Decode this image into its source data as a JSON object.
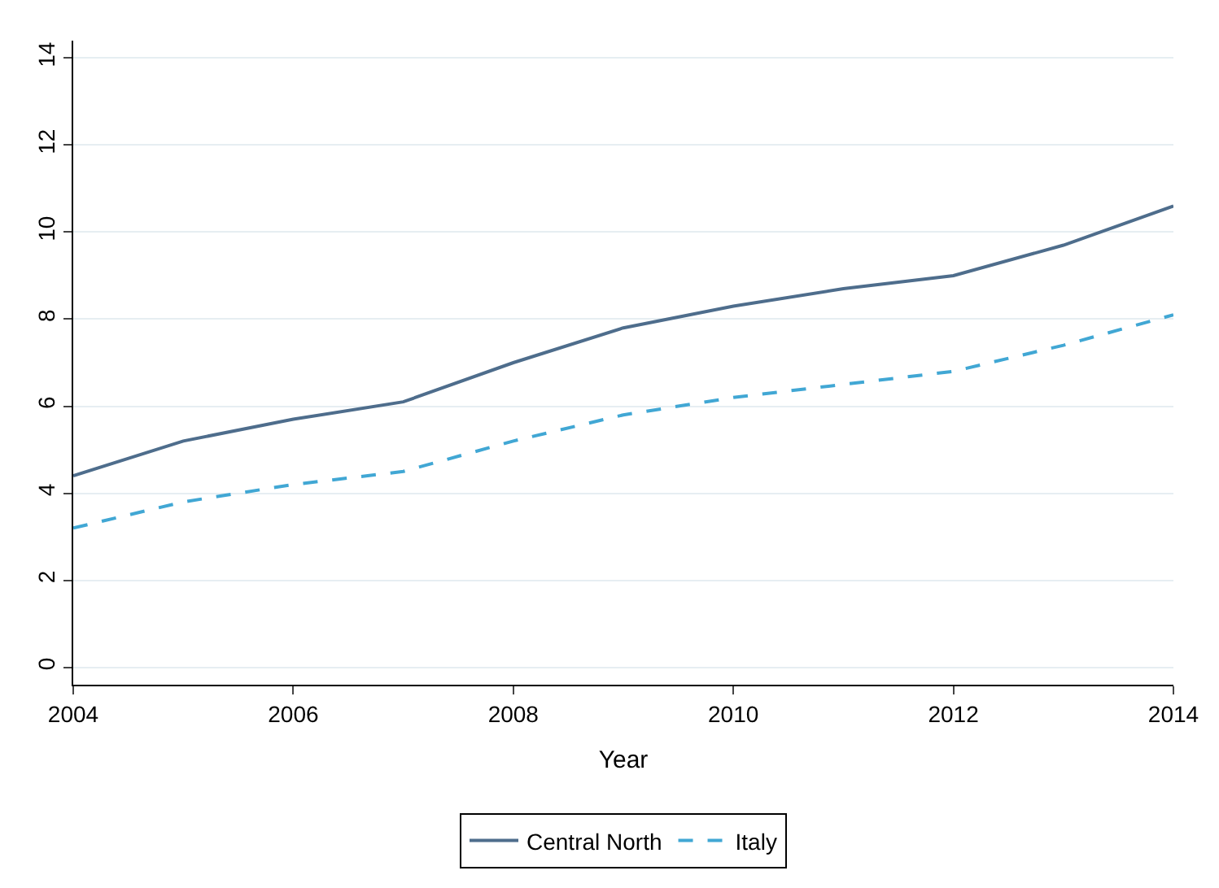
{
  "chart_data": {
    "type": "line",
    "xlabel": "Year",
    "x": [
      2004,
      2005,
      2006,
      2007,
      2008,
      2009,
      2010,
      2011,
      2012,
      2013,
      2014
    ],
    "series": [
      {
        "name": "Central North",
        "color": "#4e6d8c",
        "line_style": "solid",
        "values": [
          4.4,
          5.2,
          5.7,
          6.1,
          7.0,
          7.8,
          8.3,
          8.7,
          9.0,
          9.7,
          10.6
        ]
      },
      {
        "name": "Italy",
        "color": "#41a7d4",
        "line_style": "dashed",
        "values": [
          3.2,
          3.8,
          4.2,
          4.5,
          5.2,
          5.8,
          6.2,
          6.5,
          6.8,
          7.4,
          8.1
        ]
      }
    ],
    "xlim": [
      2004,
      2014
    ],
    "xticks": [
      2004,
      2006,
      2008,
      2010,
      2012,
      2014
    ],
    "ylim": [
      -0.4,
      14.4
    ],
    "yticks": [
      0,
      2,
      4,
      6,
      8,
      10,
      12,
      14
    ],
    "grid": "y",
    "legend": "bottom"
  }
}
